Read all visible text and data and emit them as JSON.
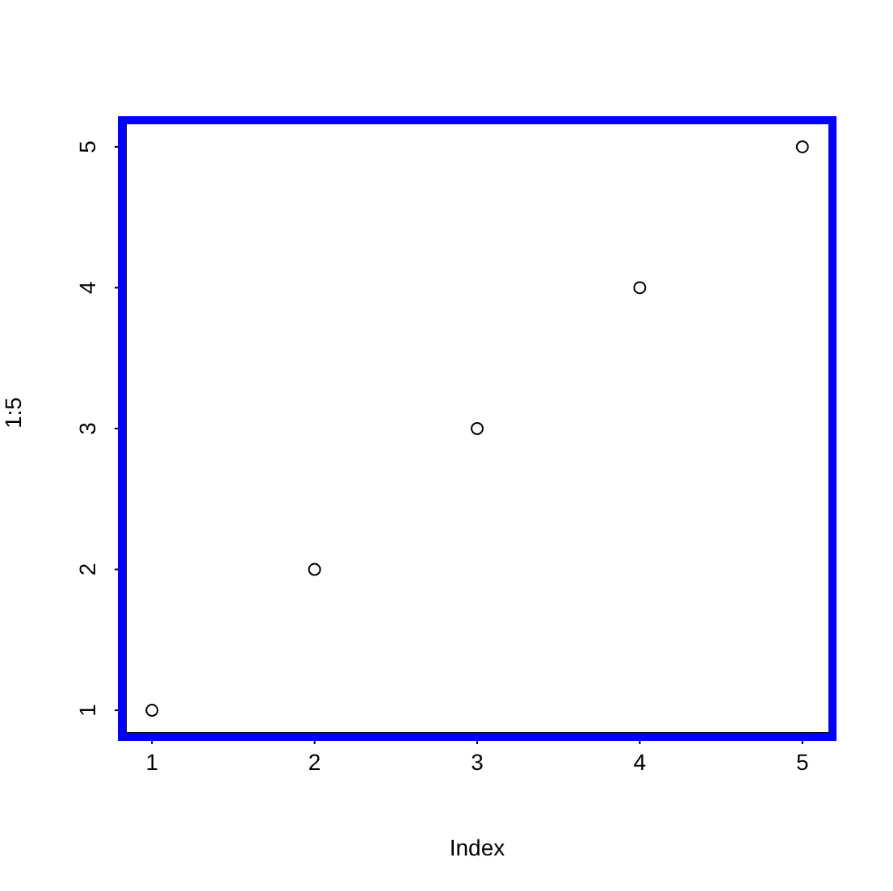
{
  "chart_data": {
    "type": "scatter",
    "xlabel": "Index",
    "ylabel": "1:5",
    "x": [
      1,
      2,
      3,
      4,
      5
    ],
    "values": [
      1,
      2,
      3,
      4,
      5
    ],
    "color": "#000000",
    "marker": "circle",
    "grid": false,
    "legend": false,
    "xlim": [
      0.84,
      5.16
    ],
    "ylim": [
      0.84,
      5.16
    ],
    "xticks": [
      1,
      2,
      3,
      4,
      5
    ],
    "yticks": [
      1,
      2,
      3,
      4,
      5
    ]
  }
}
